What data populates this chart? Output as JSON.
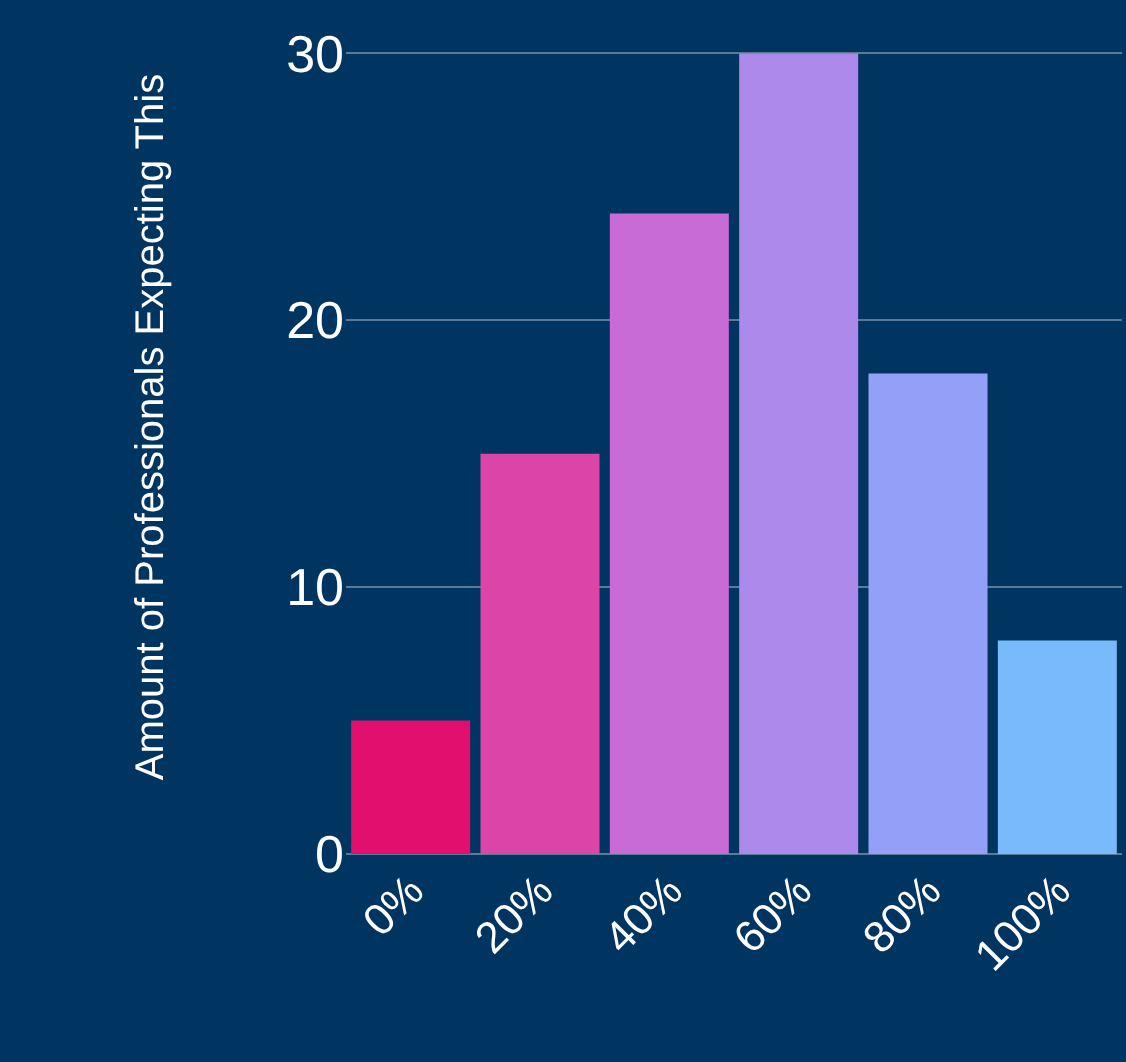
{
  "chart_data": {
    "type": "bar",
    "ylabel": "Amount of Professionals Expecting This",
    "categories": [
      "0%",
      "20%",
      "40%",
      "60%",
      "80%",
      "100%"
    ],
    "values": [
      5,
      15,
      24,
      30,
      18,
      8
    ],
    "colors": [
      "#e20f6f",
      "#db45a8",
      "#c86bd6",
      "#ad89ec",
      "#94a0f8",
      "#78bafc"
    ],
    "ylim": [
      0,
      32
    ],
    "yticks": [
      0,
      10,
      20,
      30
    ],
    "grid": "y"
  }
}
